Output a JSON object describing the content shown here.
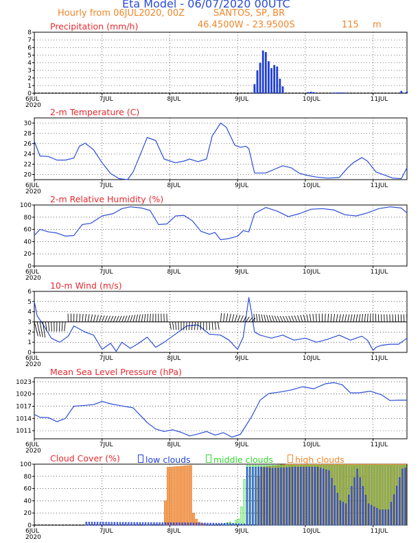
{
  "header": {
    "title": "Eta Model - 06/07/2020 00UTC",
    "subtitle": "Hourly from 06JUL2020, 00Z",
    "location": "SANTOS, SP, BR",
    "coords": "46.4500W - 23.9500S",
    "elevation": "115",
    "elevation_unit": "m"
  },
  "x_axis": {
    "ticks": [
      "6JUL",
      "7JUL",
      "8JUL",
      "9JUL",
      "10JUL",
      "11JUL"
    ],
    "tick_hours": [
      0,
      24,
      48,
      72,
      96,
      120
    ],
    "year_label": "2020",
    "hour_range": [
      0,
      132
    ]
  },
  "colors": {
    "line": "#2a4cd6",
    "bar": "#1f3fd0",
    "title": "#e8292f",
    "low": "#2040d8",
    "mid": "#2ed62e",
    "high": "#f5a05a",
    "mix": "#8e63c9"
  },
  "chart_data": [
    {
      "type": "bar",
      "title": "Precipitation (mm/h)",
      "ylim": [
        0,
        8
      ],
      "yticks": [
        "0",
        "1",
        "2",
        "3",
        "4",
        "5",
        "6",
        "7",
        "8"
      ],
      "x_hours": [
        78,
        79,
        80,
        81,
        82,
        83,
        84,
        85,
        86,
        87,
        88,
        97,
        98,
        99,
        106,
        107,
        108,
        109,
        110,
        130,
        132
      ],
      "values": [
        1.2,
        3.0,
        4.0,
        5.6,
        5.4,
        4.2,
        3.3,
        3.7,
        3.5,
        1.9,
        0.9,
        0.15,
        0.2,
        0.15,
        0.1,
        0.1,
        0.1,
        0.1,
        0.1,
        0.3,
        0.2
      ]
    },
    {
      "type": "line",
      "title": "2-m Temperature (C)",
      "ylim": [
        19,
        31
      ],
      "yticks": [
        "20",
        "22",
        "24",
        "26",
        "28",
        "30"
      ],
      "ytick_values": [
        20,
        22,
        24,
        26,
        28,
        30
      ],
      "x": [
        0,
        2,
        5,
        8,
        11,
        14,
        16,
        18,
        21,
        24,
        27,
        30,
        33,
        35,
        38,
        40,
        43,
        46,
        50,
        53,
        55,
        58,
        61,
        63,
        66,
        68,
        71,
        73,
        75,
        76,
        78,
        82,
        85,
        88,
        91,
        94,
        97,
        100,
        104,
        108,
        111,
        113,
        116,
        118,
        121,
        124,
        127,
        130,
        132
      ],
      "values": [
        26.5,
        23.6,
        23.5,
        22.8,
        22.8,
        23.2,
        25.5,
        26.1,
        24.8,
        22.3,
        20.2,
        19.2,
        19.0,
        20.5,
        24.5,
        27.2,
        26.6,
        23.0,
        22.3,
        22.6,
        23.0,
        22.5,
        23.0,
        27.5,
        30.0,
        29.2,
        25.7,
        25.3,
        25.5,
        25.0,
        20.3,
        20.3,
        21.0,
        21.7,
        21.3,
        20.2,
        19.8,
        19.5,
        19.3,
        19.4,
        21.3,
        22.3,
        23.3,
        22.6,
        20.5,
        19.9,
        19.3,
        19.2,
        21.3
      ]
    },
    {
      "type": "line",
      "title": "2-m Relative Humidity (%)",
      "ylim": [
        0,
        100
      ],
      "yticks": [
        "0",
        "20",
        "40",
        "60",
        "80",
        "100"
      ],
      "ytick_values": [
        0,
        20,
        40,
        60,
        80,
        100
      ],
      "x": [
        0,
        2,
        5,
        8,
        11,
        14,
        17,
        20,
        24,
        28,
        31,
        34,
        38,
        41,
        44,
        47,
        50,
        53,
        56,
        59,
        62,
        64,
        66,
        69,
        72,
        74,
        76,
        78,
        82,
        86,
        90,
        94,
        98,
        102,
        106,
        110,
        114,
        118,
        122,
        126,
        130,
        132
      ],
      "values": [
        50,
        60,
        56,
        54,
        49,
        50,
        68,
        70,
        82,
        86,
        94,
        97,
        95,
        91,
        68,
        69,
        82,
        83,
        74,
        57,
        52,
        55,
        43,
        45,
        49,
        58,
        56,
        86,
        96,
        90,
        81,
        86,
        93,
        94,
        92,
        84,
        82,
        87,
        94,
        97,
        95,
        87
      ]
    },
    {
      "type": "line",
      "title": "10-m Wind (m/s)",
      "ylim": [
        0,
        6
      ],
      "yticks": [
        "0",
        "1",
        "2",
        "3",
        "4",
        "5",
        "6"
      ],
      "ytick_values": [
        0,
        1,
        2,
        3,
        4,
        5,
        6
      ],
      "x": [
        0,
        1,
        3,
        6,
        9,
        12,
        14,
        16,
        18,
        21,
        24,
        27,
        29,
        31,
        34,
        37,
        40,
        43,
        46,
        50,
        54,
        58,
        62,
        66,
        69,
        72,
        74,
        76,
        77,
        78,
        80,
        84,
        88,
        92,
        96,
        100,
        104,
        108,
        112,
        116,
        118,
        120,
        121,
        123,
        126,
        129,
        132
      ],
      "values": [
        5.0,
        3.6,
        2.8,
        1.4,
        1.0,
        1.6,
        2.6,
        2.3,
        2.0,
        1.7,
        0.3,
        0.9,
        0.1,
        1.0,
        0.4,
        0.9,
        1.5,
        0.5,
        1.0,
        1.8,
        2.6,
        2.7,
        1.8,
        1.7,
        1.2,
        0.3,
        1.5,
        5.4,
        3.8,
        2.0,
        1.7,
        1.4,
        1.7,
        1.2,
        1.4,
        1.0,
        1.3,
        1.7,
        1.2,
        1.6,
        1.2,
        0.2,
        0.5,
        0.7,
        0.8,
        0.8,
        1.4
      ],
      "barb_ref_value": 3
    },
    {
      "type": "line",
      "title": "Mean Sea Level Pressure (hPa)",
      "ylim": [
        1009,
        1024
      ],
      "yticks": [
        "1011",
        "1014",
        "1017",
        "1020",
        "1023"
      ],
      "ytick_values": [
        1011,
        1014,
        1017,
        1020,
        1023
      ],
      "x": [
        0,
        2,
        5,
        8,
        11,
        14,
        18,
        21,
        24,
        27,
        30,
        35,
        40,
        43,
        46,
        49,
        52,
        55,
        58,
        61,
        64,
        67,
        70,
        73,
        77,
        80,
        83,
        87,
        91,
        95,
        99,
        103,
        106,
        109,
        112,
        115,
        119,
        123,
        126,
        129,
        132
      ],
      "values": [
        1015,
        1014.3,
        1014.2,
        1013.2,
        1014,
        1017,
        1017.2,
        1017.4,
        1018.2,
        1017.6,
        1017.2,
        1016.6,
        1013,
        1011.4,
        1010.8,
        1011.2,
        1010.6,
        1009.7,
        1010.2,
        1010.8,
        1009.9,
        1010.5,
        1009.4,
        1010.1,
        1014.5,
        1018.5,
        1020.1,
        1020.5,
        1021,
        1021.8,
        1021.3,
        1022.5,
        1022.8,
        1022.3,
        1020.3,
        1020.3,
        1020.7,
        1019.8,
        1018.4,
        1018.5,
        1018.5
      ]
    },
    {
      "type": "bar",
      "title": "Cloud Cover (%)",
      "ylim": [
        0,
        100
      ],
      "yticks": [
        "0",
        "20",
        "40",
        "60",
        "80",
        "100"
      ],
      "ytick_values": [
        0,
        20,
        40,
        60,
        80,
        100
      ],
      "legend": [
        "low clouds",
        "middle clouds",
        "high clouds"
      ],
      "low_points": [
        [
          18,
          5
        ],
        [
          68,
          3
        ],
        [
          73,
          2
        ],
        [
          74,
          2
        ],
        [
          75,
          95
        ],
        [
          80,
          95
        ],
        [
          84,
          93
        ],
        [
          92,
          95
        ],
        [
          100,
          95
        ],
        [
          104,
          89
        ],
        [
          108,
          40
        ],
        [
          110,
          35
        ],
        [
          114,
          92
        ],
        [
          118,
          35
        ],
        [
          122,
          25
        ],
        [
          125,
          25
        ],
        [
          127,
          50
        ],
        [
          130,
          92
        ],
        [
          132,
          95
        ]
      ],
      "mid_points": [
        [
          0,
          0
        ],
        [
          66,
          0
        ],
        [
          67,
          3
        ],
        [
          69,
          5
        ],
        [
          70,
          3
        ],
        [
          71,
          8
        ],
        [
          72,
          10
        ],
        [
          73,
          30
        ],
        [
          74,
          75
        ],
        [
          75,
          98
        ],
        [
          132,
          98
        ]
      ],
      "high_points": [
        [
          0,
          0
        ],
        [
          45,
          0
        ],
        [
          46,
          40
        ],
        [
          47,
          95
        ],
        [
          55,
          98
        ],
        [
          56,
          20
        ],
        [
          57,
          10
        ],
        [
          58,
          5
        ],
        [
          59,
          3
        ],
        [
          60,
          2
        ],
        [
          61,
          0
        ],
        [
          78,
          0
        ],
        [
          79,
          80
        ],
        [
          80,
          95
        ],
        [
          89,
          100
        ],
        [
          132,
          100
        ]
      ]
    }
  ]
}
